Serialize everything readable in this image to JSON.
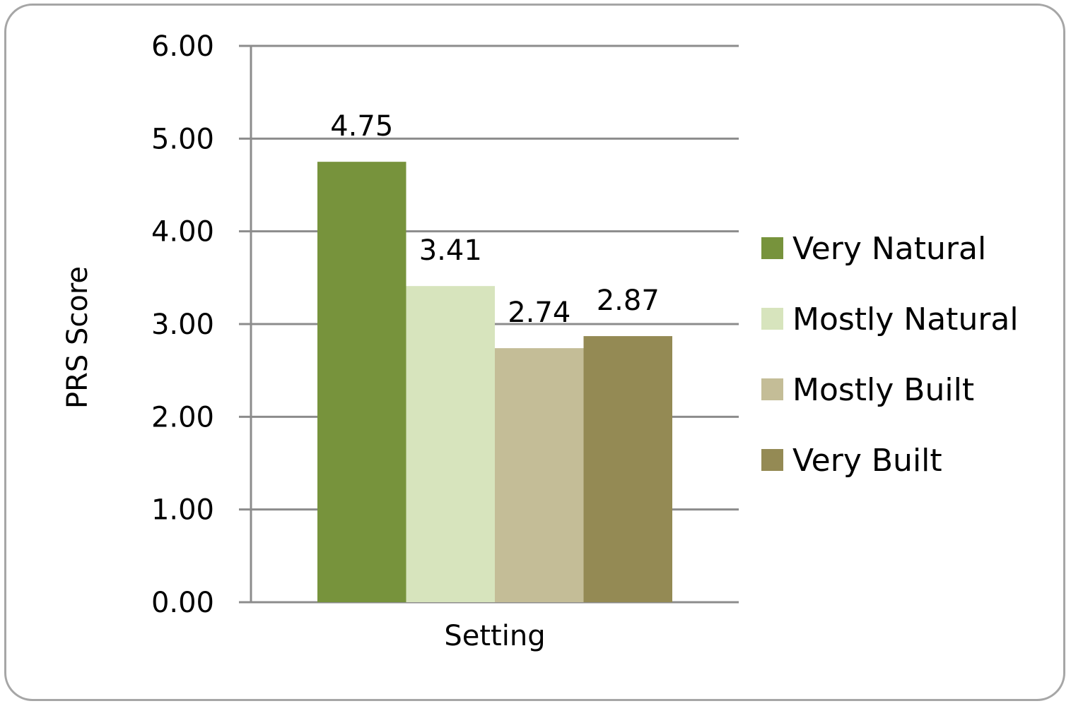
{
  "chart_data": {
    "type": "bar",
    "categories": [
      "Setting"
    ],
    "series": [
      {
        "name": "Very Natural",
        "values": [
          4.75
        ],
        "color": "#77933c",
        "label": "4.75"
      },
      {
        "name": "Mostly Natural",
        "values": [
          3.41
        ],
        "color": "#d7e4bd",
        "label": "3.41"
      },
      {
        "name": "Mostly Built",
        "values": [
          2.74
        ],
        "color": "#c4bd97",
        "label": "2.74"
      },
      {
        "name": "Very Built",
        "values": [
          2.87
        ],
        "color": "#948a54",
        "label": "2.87"
      }
    ],
    "title": "",
    "xlabel": "Setting",
    "ylabel": "PRS Score",
    "ylim": [
      0,
      6
    ],
    "yticks": [
      "0.00",
      "1.00",
      "2.00",
      "3.00",
      "4.00",
      "5.00",
      "6.00"
    ],
    "grid": true,
    "legend_position": "right",
    "gridline_color": "#8c8c8c",
    "frame_color": "#a6a6a6"
  }
}
